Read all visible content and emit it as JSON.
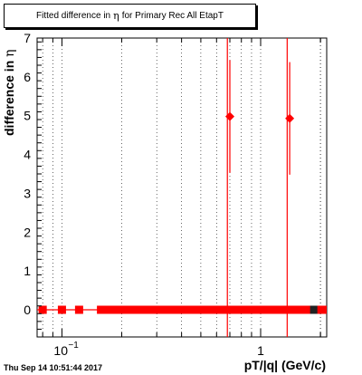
{
  "title": {
    "prefix": "Fitted difference in",
    "symbol": "η",
    "suffix": "for Primary Rec All EtapT"
  },
  "timestamp": "Thu Sep 14 10:51:44 2017",
  "chart_data": {
    "type": "scatter",
    "title": "Fitted difference in η for Primary Rec All EtapT",
    "xlabel": "pT/|q| (GeV/c)",
    "ylabel": "difference in η",
    "xscale": "log",
    "xlim": [
      0.075,
      2.15
    ],
    "ylim": [
      -0.7,
      7.0
    ],
    "y_ticks": [
      0,
      1,
      2,
      3,
      4,
      5,
      6,
      7
    ],
    "x_tick_labels": [
      {
        "value": 0.1,
        "base": "10",
        "exp": "−1"
      },
      {
        "value": 1,
        "label": "1"
      }
    ],
    "grid": true,
    "marker_color": "#ff0000",
    "points": [
      {
        "x": 0.08,
        "y": 0.0,
        "yerr": 0.03
      },
      {
        "x": 0.1,
        "y": 0.0,
        "yerr": 0.03
      },
      {
        "x": 0.122,
        "y": 0.0,
        "yerr": 0.03
      },
      {
        "x": 0.7,
        "y": 4.98,
        "yerr": 1.45
      },
      {
        "x": 1.4,
        "y": 4.93,
        "yerr": 1.45
      }
    ],
    "zero_band": {
      "x_start": 0.15,
      "x_end": 2.15,
      "y": 0.0
    },
    "dark_marker": {
      "x": 1.85,
      "y": 0.0
    },
    "full_height_errors": [
      0.68,
      1.36
    ]
  }
}
